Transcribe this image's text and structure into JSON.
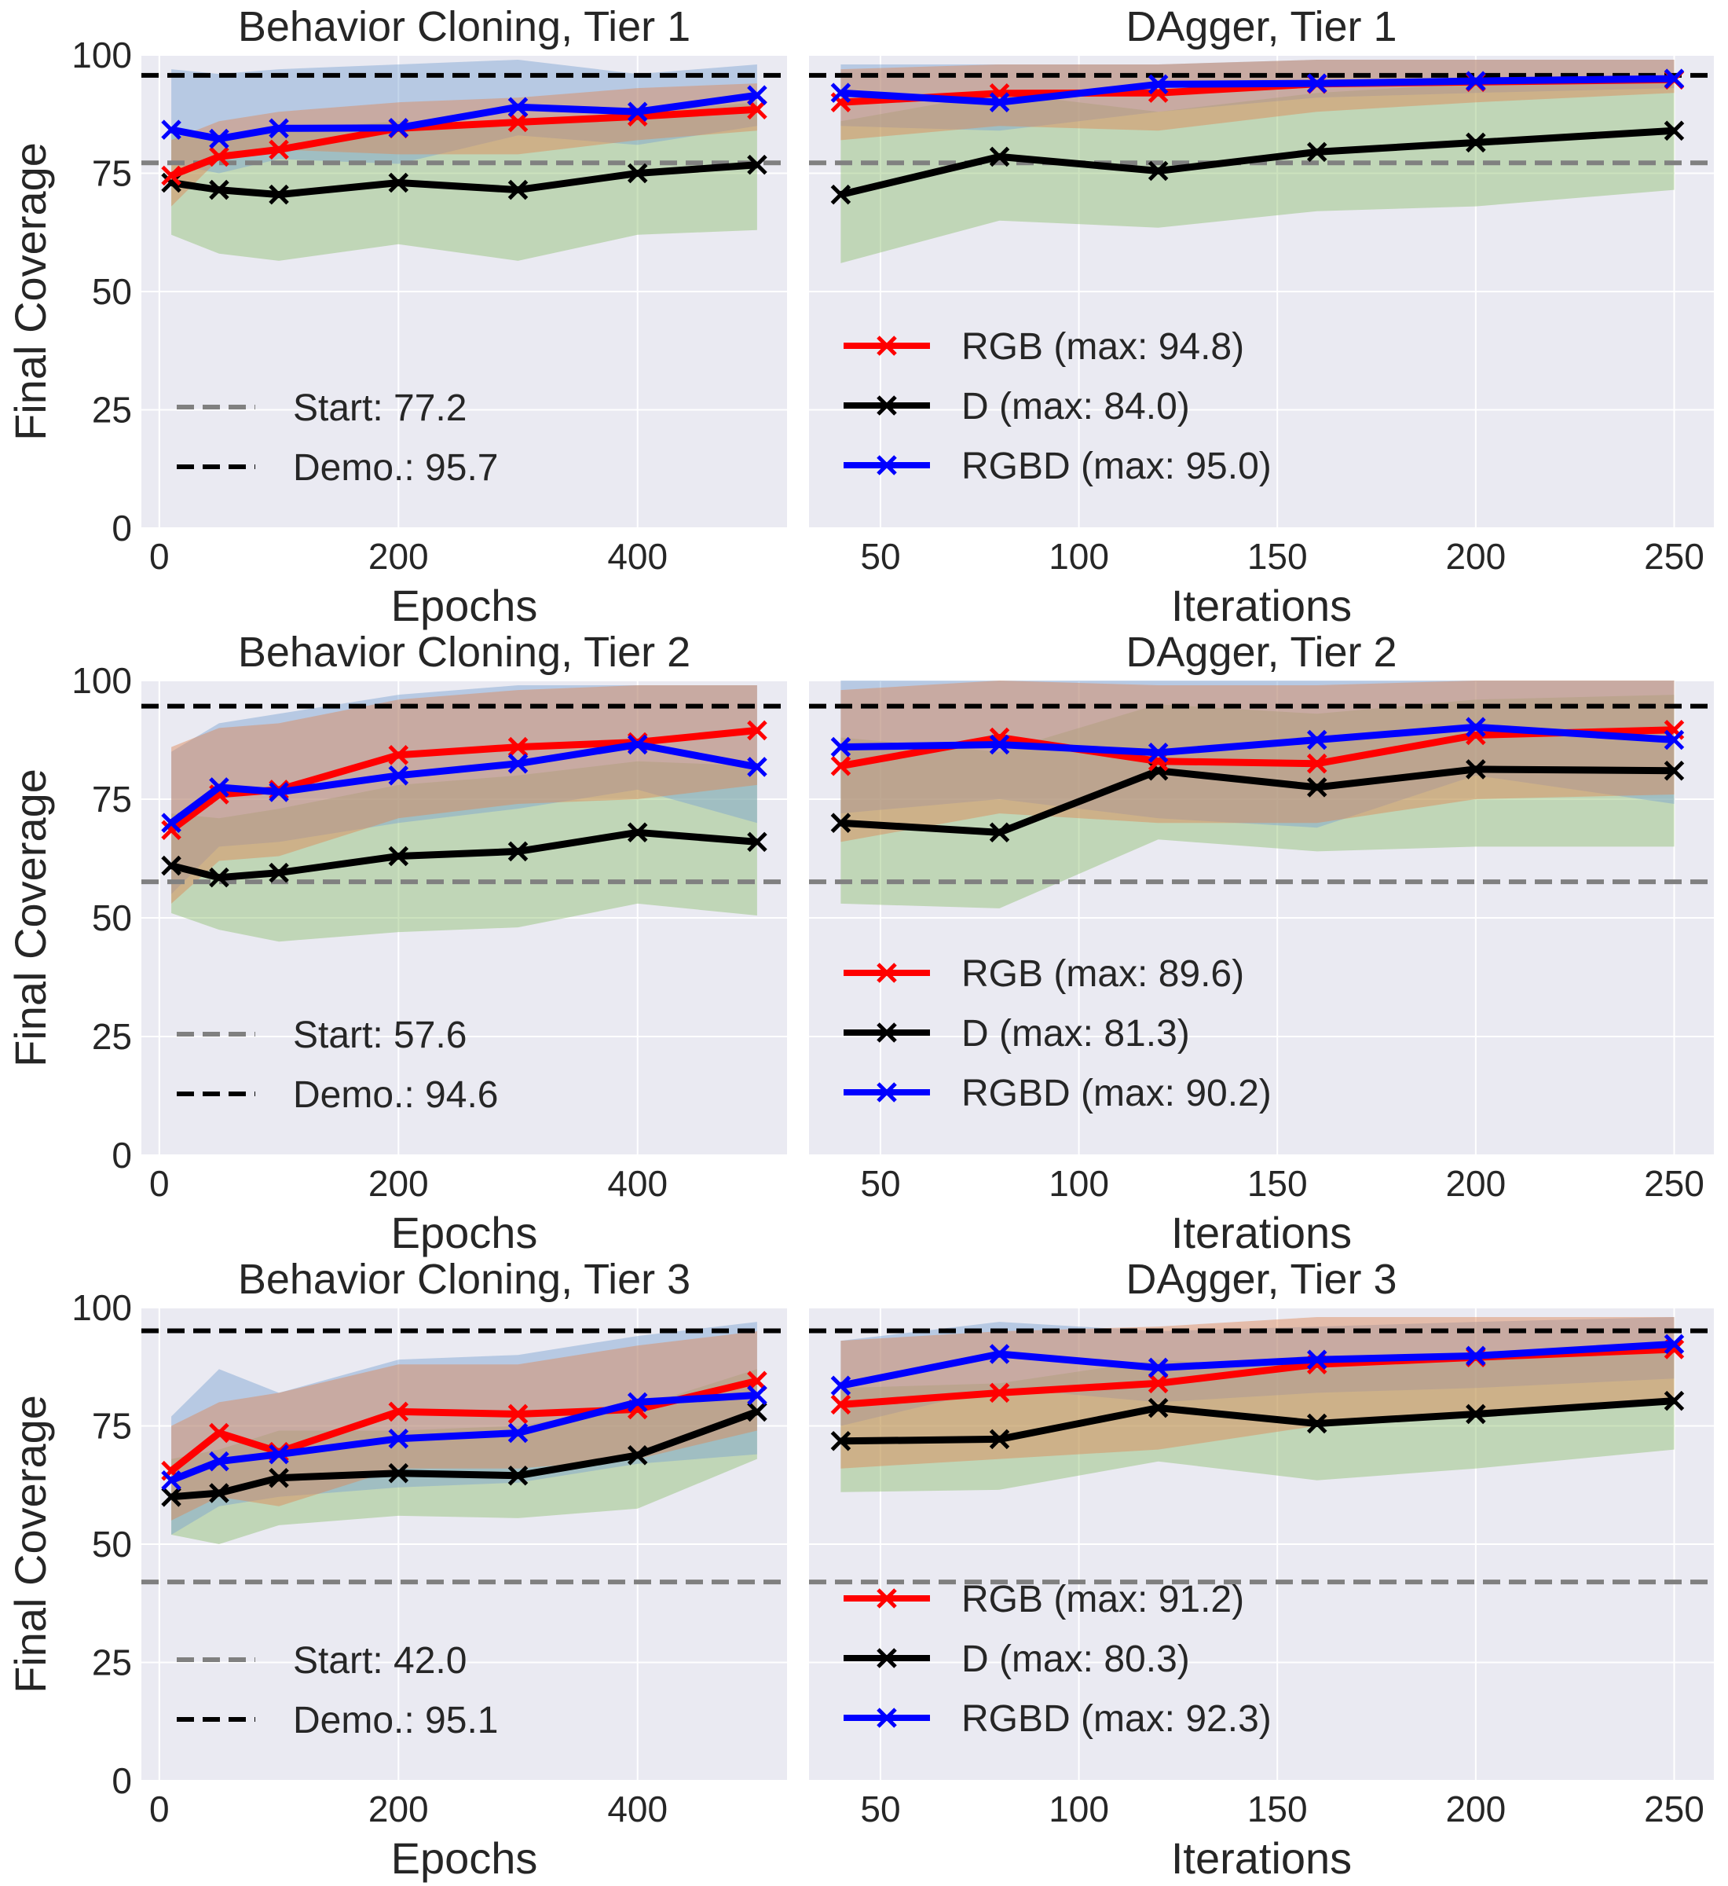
{
  "figure": {
    "ylabel": "Final Coverage",
    "colors": {
      "plot_bg": "#eaeaf2",
      "grid": "#ffffff",
      "rgb": "#ff0000",
      "d": "#000000",
      "rgbd": "#0000ff",
      "band_rgb": "#dd8452",
      "band_d": "#8fbf6f",
      "band_rgbd": "#7aa2d0",
      "start_line": "#808080",
      "demo_line": "#000000"
    }
  },
  "chart_data": [
    {
      "type": "line",
      "title": "Behavior Cloning, Tier 1",
      "xlabel": "Epochs",
      "ylabel": "Final Coverage",
      "xlim": [
        -15,
        525
      ],
      "ylim": [
        0,
        100
      ],
      "xticks": [
        0,
        200,
        400
      ],
      "yticks": [
        0,
        25,
        50,
        75,
        100
      ],
      "x": [
        10,
        50,
        100,
        200,
        300,
        400,
        500
      ],
      "series": [
        {
          "name": "RGB",
          "values": [
            74.5,
            78.5,
            80.0,
            84.5,
            85.8,
            87.0,
            88.5
          ],
          "band": [
            [
              68,
              78,
              80,
              79,
              79,
              82,
              84
            ],
            [
              82,
              86,
              88,
              90,
              91,
              93,
              94
            ]
          ]
        },
        {
          "name": "D",
          "values": [
            73.0,
            71.5,
            70.5,
            73.0,
            71.5,
            75.0,
            76.8
          ],
          "band": [
            [
              62,
              58,
              56.5,
              60,
              56.5,
              62,
              63
            ],
            [
              84,
              83,
              84,
              86,
              85,
              88,
              90
            ]
          ]
        },
        {
          "name": "RGBD",
          "values": [
            84.2,
            82.3,
            84.5,
            84.6,
            89.0,
            88.0,
            91.5
          ],
          "band": [
            [
              77,
              75,
              78,
              77,
              83,
              81,
              85
            ],
            [
              97,
              96,
              97,
              98,
              99,
              96,
              98
            ]
          ]
        }
      ],
      "hlines": [
        {
          "name": "Start",
          "value": 77.2
        },
        {
          "name": "Demo.",
          "value": 95.7
        }
      ],
      "legend": {
        "placement": "lower-left",
        "entries": [
          "Start: 77.2",
          "Demo.: 95.7"
        ]
      }
    },
    {
      "type": "line",
      "title": "DAgger, Tier 1",
      "xlabel": "Iterations",
      "ylabel": "",
      "xlim": [
        32,
        260
      ],
      "ylim": [
        0,
        100
      ],
      "xticks": [
        50,
        100,
        150,
        200,
        250
      ],
      "yticks": [
        0,
        25,
        50,
        75,
        100
      ],
      "x": [
        40,
        80,
        120,
        160,
        200,
        250
      ],
      "series": [
        {
          "name": "RGB",
          "values": [
            90.0,
            91.9,
            92.0,
            93.9,
            94.3,
            94.8
          ],
          "band": [
            [
              82,
              85,
              84,
              88,
              90,
              92
            ],
            [
              97,
              98,
              98,
              99,
              99,
              99
            ]
          ]
        },
        {
          "name": "D",
          "values": [
            70.5,
            78.5,
            75.5,
            79.5,
            81.5,
            84.0
          ],
          "band": [
            [
              56,
              65,
              63.5,
              67,
              68,
              71.5
            ],
            [
              86,
              92,
              88,
              92,
              94,
              95
            ]
          ]
        },
        {
          "name": "RGBD",
          "values": [
            92.0,
            90.0,
            93.8,
            94.0,
            94.5,
            95.0
          ],
          "band": [
            [
              85,
              84,
              88,
              91,
              92,
              93
            ],
            [
              98,
              98,
              98,
              99,
              99,
              99
            ]
          ]
        }
      ],
      "hlines": [
        {
          "name": "Start",
          "value": 77.2
        },
        {
          "name": "Demo.",
          "value": 95.7
        }
      ],
      "legend": {
        "placement": "lower-left",
        "entries": [
          "RGB (max: 94.8)",
          "D (max: 84.0)",
          "RGBD (max: 95.0)"
        ]
      }
    },
    {
      "type": "line",
      "title": "Behavior Cloning, Tier 2",
      "xlabel": "Epochs",
      "ylabel": "Final Coverage",
      "xlim": [
        -15,
        525
      ],
      "ylim": [
        0,
        100
      ],
      "xticks": [
        0,
        200,
        400
      ],
      "yticks": [
        0,
        25,
        50,
        75,
        100
      ],
      "x": [
        10,
        50,
        100,
        200,
        300,
        400,
        500
      ],
      "series": [
        {
          "name": "RGB",
          "values": [
            68.5,
            76.0,
            77.0,
            84.3,
            86.0,
            87.0,
            89.5
          ],
          "band": [
            [
              53,
              62,
              63,
              71,
              74,
              75,
              78
            ],
            [
              86,
              90,
              91,
              96,
              98,
              99,
              99
            ]
          ]
        },
        {
          "name": "D",
          "values": [
            61.0,
            58.5,
            59.5,
            63.0,
            64.0,
            68.0,
            66.0
          ],
          "band": [
            [
              51,
              47.5,
              45,
              47,
              48,
              53,
              50.5
            ],
            [
              72,
              71,
              73,
              78,
              80,
              83,
              82
            ]
          ]
        },
        {
          "name": "RGBD",
          "values": [
            70.0,
            77.5,
            76.5,
            80.0,
            82.5,
            86.5,
            81.8
          ],
          "band": [
            [
              55,
              65,
              66,
              70,
              73,
              77,
              70
            ],
            [
              85,
              91,
              93,
              97,
              99,
              99,
              99
            ]
          ]
        }
      ],
      "hlines": [
        {
          "name": "Start",
          "value": 57.6
        },
        {
          "name": "Demo.",
          "value": 94.6
        }
      ],
      "legend": {
        "placement": "lower-left",
        "entries": [
          "Start: 57.6",
          "Demo.: 94.6"
        ]
      }
    },
    {
      "type": "line",
      "title": "DAgger, Tier 2",
      "xlabel": "Iterations",
      "ylabel": "",
      "xlim": [
        32,
        260
      ],
      "ylim": [
        0,
        100
      ],
      "xticks": [
        50,
        100,
        150,
        200,
        250
      ],
      "yticks": [
        0,
        25,
        50,
        75,
        100
      ],
      "x": [
        40,
        80,
        120,
        160,
        200,
        250
      ],
      "series": [
        {
          "name": "RGB",
          "values": [
            82.0,
            88.0,
            83.0,
            82.5,
            88.5,
            89.6
          ],
          "band": [
            [
              66,
              72,
              70,
              70,
              75,
              76
            ],
            [
              98,
              100,
              99,
              99,
              100,
              100
            ]
          ]
        },
        {
          "name": "D",
          "values": [
            70.0,
            68.0,
            81.0,
            77.5,
            81.3,
            81.0
          ],
          "band": [
            [
              53,
              52,
              66.5,
              64,
              65,
              65
            ],
            [
              88,
              85,
              95,
              93,
              96,
              97
            ]
          ]
        },
        {
          "name": "RGBD",
          "values": [
            86.0,
            86.5,
            84.8,
            87.5,
            90.2,
            87.5
          ],
          "band": [
            [
              72,
              75,
              71,
              69,
              80,
              74
            ],
            [
              100,
              100,
              100,
              100,
              100,
              100
            ]
          ]
        }
      ],
      "hlines": [
        {
          "name": "Start",
          "value": 57.6
        },
        {
          "name": "Demo.",
          "value": 94.6
        }
      ],
      "legend": {
        "placement": "lower-left",
        "entries": [
          "RGB (max: 89.6)",
          "D (max: 81.3)",
          "RGBD (max: 90.2)"
        ]
      }
    },
    {
      "type": "line",
      "title": "Behavior Cloning, Tier 3",
      "xlabel": "Epochs",
      "ylabel": "Final Coverage",
      "xlim": [
        -15,
        525
      ],
      "ylim": [
        0,
        100
      ],
      "xticks": [
        0,
        200,
        400
      ],
      "yticks": [
        0,
        25,
        50,
        75,
        100
      ],
      "x": [
        10,
        50,
        100,
        200,
        300,
        400,
        500
      ],
      "series": [
        {
          "name": "RGB",
          "values": [
            65.5,
            73.5,
            69.5,
            78.0,
            77.5,
            78.5,
            84.5
          ],
          "band": [
            [
              55,
              60,
              58,
              66,
              66,
              68,
              74
            ],
            [
              75,
              80,
              82,
              88,
              88,
              92,
              95
            ]
          ]
        },
        {
          "name": "D",
          "values": [
            60.0,
            60.8,
            64.0,
            65.0,
            64.5,
            68.8,
            78.0
          ],
          "band": [
            [
              52,
              50,
              54,
              56,
              55.5,
              57.5,
              68
            ],
            [
              68,
              70,
              74,
              74,
              75,
              79,
              87
            ]
          ]
        },
        {
          "name": "RGBD",
          "values": [
            63.5,
            67.5,
            69.0,
            72.3,
            73.5,
            80.0,
            81.5
          ],
          "band": [
            [
              52,
              58,
              60,
              62,
              63,
              67,
              69
            ],
            [
              77,
              87,
              82,
              89,
              90,
              94,
              97
            ]
          ]
        }
      ],
      "hlines": [
        {
          "name": "Start",
          "value": 42.0
        },
        {
          "name": "Demo.",
          "value": 95.1
        }
      ],
      "legend": {
        "placement": "lower-left",
        "entries": [
          "Start: 42.0",
          "Demo.: 95.1"
        ]
      }
    },
    {
      "type": "line",
      "title": "DAgger, Tier 3",
      "xlabel": "Iterations",
      "ylabel": "",
      "xlim": [
        32,
        260
      ],
      "ylim": [
        0,
        100
      ],
      "xticks": [
        50,
        100,
        150,
        200,
        250
      ],
      "yticks": [
        0,
        25,
        50,
        75,
        100
      ],
      "x": [
        40,
        80,
        120,
        160,
        200,
        250
      ],
      "series": [
        {
          "name": "RGB",
          "values": [
            79.5,
            82.0,
            84.0,
            88.0,
            89.5,
            91.2
          ],
          "band": [
            [
              66,
              68,
              70,
              75,
              77,
              80
            ],
            [
              93,
              95,
              96,
              98,
              98,
              98
            ]
          ]
        },
        {
          "name": "D",
          "values": [
            71.8,
            72.2,
            78.8,
            75.5,
            77.5,
            80.3
          ],
          "band": [
            [
              61,
              61.5,
              67.5,
              63.5,
              66,
              70
            ],
            [
              83,
              84,
              89,
              87,
              89,
              91
            ]
          ]
        },
        {
          "name": "RGBD",
          "values": [
            83.5,
            90.2,
            87.3,
            89.0,
            89.8,
            92.3
          ],
          "band": [
            [
              75,
              83,
              80,
              82,
              83,
              85
            ],
            [
              93,
              97,
              95,
              96,
              97,
              98
            ]
          ]
        }
      ],
      "hlines": [
        {
          "name": "Start",
          "value": 42.0
        },
        {
          "name": "Demo.",
          "value": 95.1
        }
      ],
      "legend": {
        "placement": "lower-left",
        "entries": [
          "RGB (max: 91.2)",
          "D (max: 80.3)",
          "RGBD (max: 92.3)"
        ]
      }
    }
  ]
}
